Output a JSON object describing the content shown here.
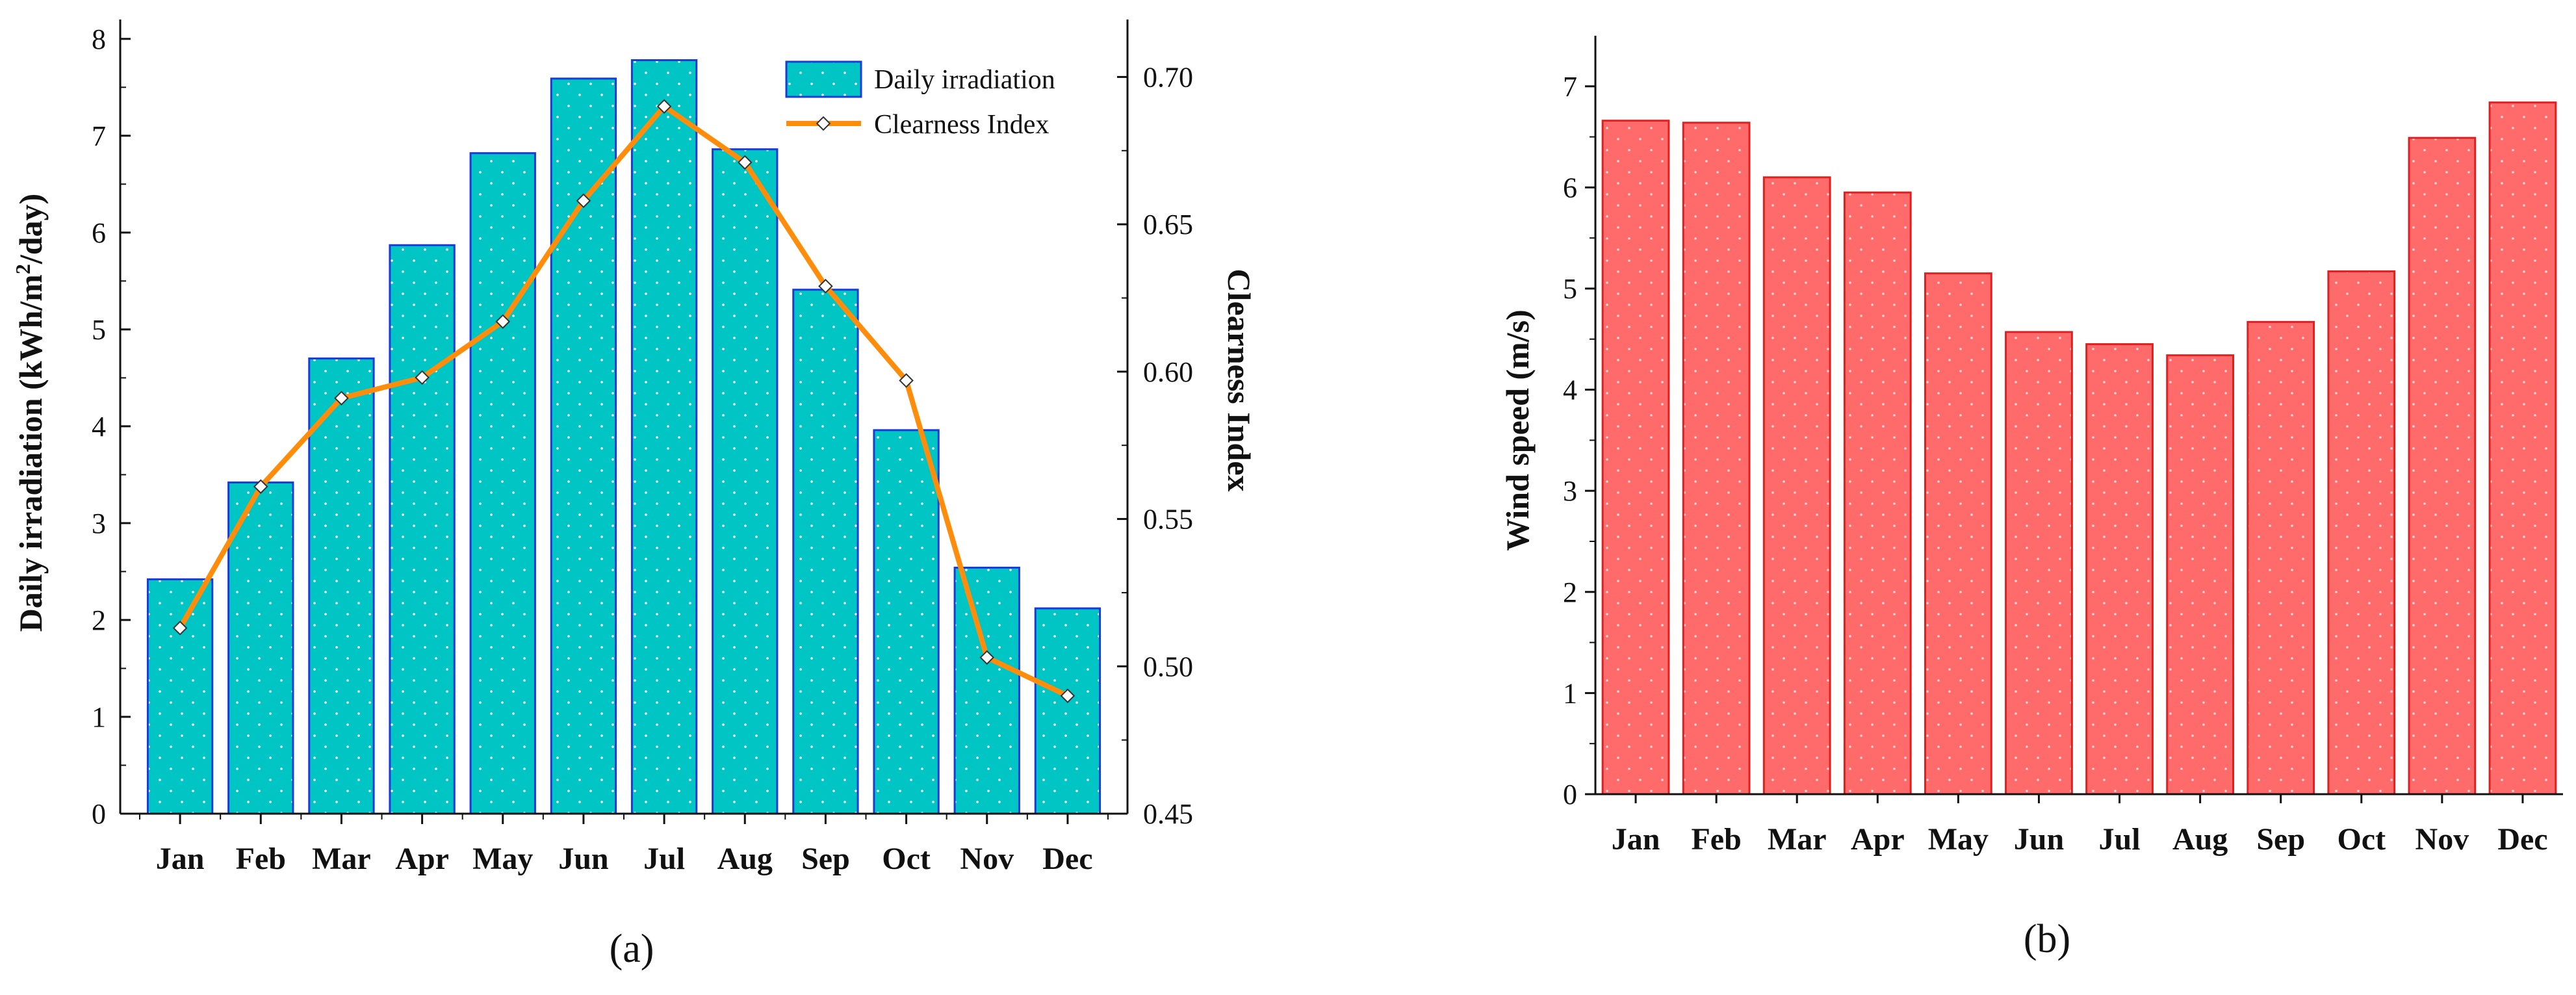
{
  "chart_data": [
    {
      "type": "bar",
      "panel_label": "(a)",
      "categories": [
        "Jan",
        "Feb",
        "Mar",
        "Apr",
        "May",
        "Jun",
        "Jul",
        "Aug",
        "Sep",
        "Oct",
        "Nov",
        "Dec"
      ],
      "series": [
        {
          "name": "Daily irradiation",
          "type": "bar",
          "axis": "left",
          "color": "#00c5c5",
          "edge_color": "#1a3bd8",
          "values": [
            2.42,
            3.42,
            4.7,
            5.87,
            6.82,
            7.59,
            7.78,
            6.86,
            5.41,
            3.96,
            2.54,
            2.12
          ]
        },
        {
          "name": "Clearness Index",
          "type": "line",
          "axis": "right",
          "color": "#ff8c0a",
          "values": [
            0.513,
            0.561,
            0.591,
            0.598,
            0.617,
            0.658,
            0.69,
            0.671,
            0.629,
            0.597,
            0.503,
            0.49
          ]
        }
      ],
      "ylabel_parts": [
        "Daily irradiation (kWh/m",
        "2",
        "/day)"
      ],
      "y2label": "Clearness Index",
      "ylim": [
        0,
        8.2
      ],
      "y2lim": [
        0.45,
        0.7195
      ],
      "yticks": [
        0,
        1,
        2,
        3,
        4,
        5,
        6,
        7,
        8
      ],
      "y2ticks": [
        "0.45",
        "0.50",
        "0.55",
        "0.60",
        "0.65",
        "0.70"
      ],
      "legend_position": "top-right",
      "grid": false
    },
    {
      "type": "bar",
      "panel_label": "(b)",
      "categories": [
        "Jan",
        "Feb",
        "Mar",
        "Apr",
        "May",
        "Jun",
        "Jul",
        "Aug",
        "Sep",
        "Oct",
        "Nov",
        "Dec"
      ],
      "series": [
        {
          "type": "bar",
          "color": "#ff6b6b",
          "edge_color": "#e02020",
          "values": [
            6.66,
            6.64,
            6.1,
            5.95,
            5.15,
            4.57,
            4.45,
            4.34,
            4.67,
            5.17,
            6.49,
            6.84
          ]
        }
      ],
      "ylabel": "Wind speed (m/s)",
      "ylim": [
        0,
        7.5
      ],
      "yticks": [
        0,
        1,
        2,
        3,
        4,
        5,
        6,
        7
      ],
      "grid": false
    }
  ]
}
